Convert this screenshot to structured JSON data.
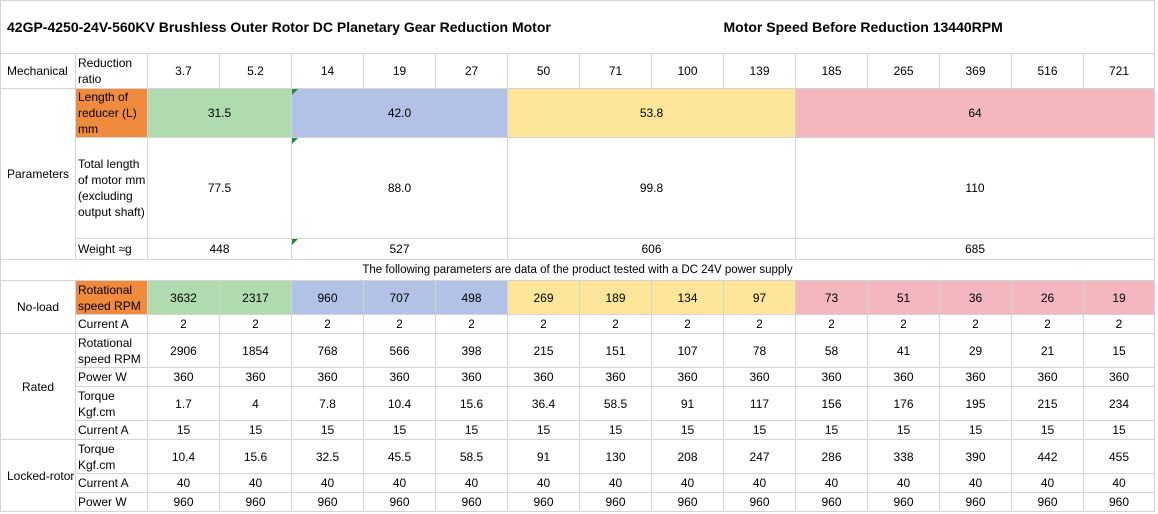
{
  "title": "42GP-4250-24V-560KV Brushless Outer Rotor DC Planetary Gear Reduction Motor",
  "subtitle": "Motor Speed Before Reduction 13440RPM",
  "colors": {
    "green": "#b0dbb1",
    "blue": "#b2c1e6",
    "yellow": "#fde699",
    "pink": "#f4b7bf",
    "orange": "#f08a3c"
  },
  "sections": {
    "mechanical": "Mechanical",
    "parameters": "Parameters",
    "no_load": "No-load",
    "rated": "Rated",
    "locked_rotor": "Locked-rotor"
  },
  "mechanical": {
    "reduction_ratio_label": "Reduction ratio",
    "reduction_ratios": [
      "3.7",
      "5.2",
      "14",
      "19",
      "27",
      "50",
      "71",
      "100",
      "139",
      "185",
      "265",
      "369",
      "516",
      "721"
    ],
    "reducer_length_label": "Length of reducer (L) mm",
    "reducer_lengths": [
      "31.5",
      "42.0",
      "53.8",
      "64"
    ],
    "total_length_label": "Total length of motor mm (excluding output shaft)",
    "total_lengths": [
      "77.5",
      "88.0",
      "99.8",
      "110"
    ],
    "weight_label": "Weight ≈g",
    "weights": [
      "448",
      "527",
      "606",
      "685"
    ]
  },
  "test_note": "The following parameters are data of the product tested with a DC 24V power supply",
  "no_load": {
    "speed_label": "Rotational speed RPM",
    "speeds": [
      "3632",
      "2317",
      "960",
      "707",
      "498",
      "269",
      "189",
      "134",
      "97",
      "73",
      "51",
      "36",
      "26",
      "19"
    ],
    "current_label": "Current A",
    "currents": [
      "2",
      "2",
      "2",
      "2",
      "2",
      "2",
      "2",
      "2",
      "2",
      "2",
      "2",
      "2",
      "2",
      "2"
    ]
  },
  "rated": {
    "speed_label": "Rotational speed RPM",
    "speeds": [
      "2906",
      "1854",
      "768",
      "566",
      "398",
      "215",
      "151",
      "107",
      "78",
      "58",
      "41",
      "29",
      "21",
      "15"
    ],
    "power_label": "Power W",
    "powers": [
      "360",
      "360",
      "360",
      "360",
      "360",
      "360",
      "360",
      "360",
      "360",
      "360",
      "360",
      "360",
      "360",
      "360"
    ],
    "torque_label": "Torque Kgf.cm",
    "torques": [
      "1.7",
      "4",
      "7.8",
      "10.4",
      "15.6",
      "36.4",
      "58.5",
      "91",
      "117",
      "156",
      "176",
      "195",
      "215",
      "234"
    ],
    "current_label": "Current A",
    "currents": [
      "15",
      "15",
      "15",
      "15",
      "15",
      "15",
      "15",
      "15",
      "15",
      "15",
      "15",
      "15",
      "15",
      "15"
    ]
  },
  "locked_rotor": {
    "torque_label": "Torque Kgf.cm",
    "torques": [
      "10.4",
      "15.6",
      "32.5",
      "45.5",
      "58.5",
      "91",
      "130",
      "208",
      "247",
      "286",
      "338",
      "390",
      "442",
      "455"
    ],
    "current_label": "Current A",
    "currents": [
      "40",
      "40",
      "40",
      "40",
      "40",
      "40",
      "40",
      "40",
      "40",
      "40",
      "40",
      "40",
      "40",
      "40"
    ],
    "power_label": "Power W",
    "powers": [
      "960",
      "960",
      "960",
      "960",
      "960",
      "960",
      "960",
      "960",
      "960",
      "960",
      "960",
      "960",
      "960",
      "960"
    ]
  }
}
